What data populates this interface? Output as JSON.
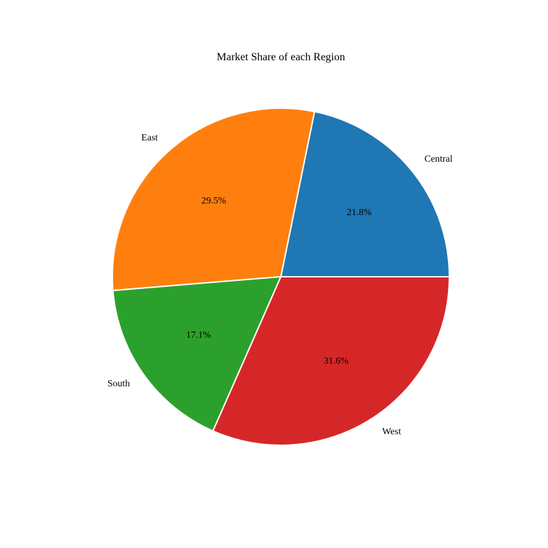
{
  "chart_data": {
    "type": "pie",
    "title": "Market Share of each Region",
    "start_angle_deg": 0,
    "direction": "counterclockwise",
    "slices": [
      {
        "label": "Central",
        "value": 21.8,
        "pct_label": "21.8%",
        "color": "#1f77b4"
      },
      {
        "label": "East",
        "value": 29.5,
        "pct_label": "29.5%",
        "color": "#ff7f0e"
      },
      {
        "label": "South",
        "value": 17.1,
        "pct_label": "17.1%",
        "color": "#2ca02c"
      },
      {
        "label": "West",
        "value": 31.6,
        "pct_label": "31.6%",
        "color": "#d62728"
      }
    ]
  }
}
